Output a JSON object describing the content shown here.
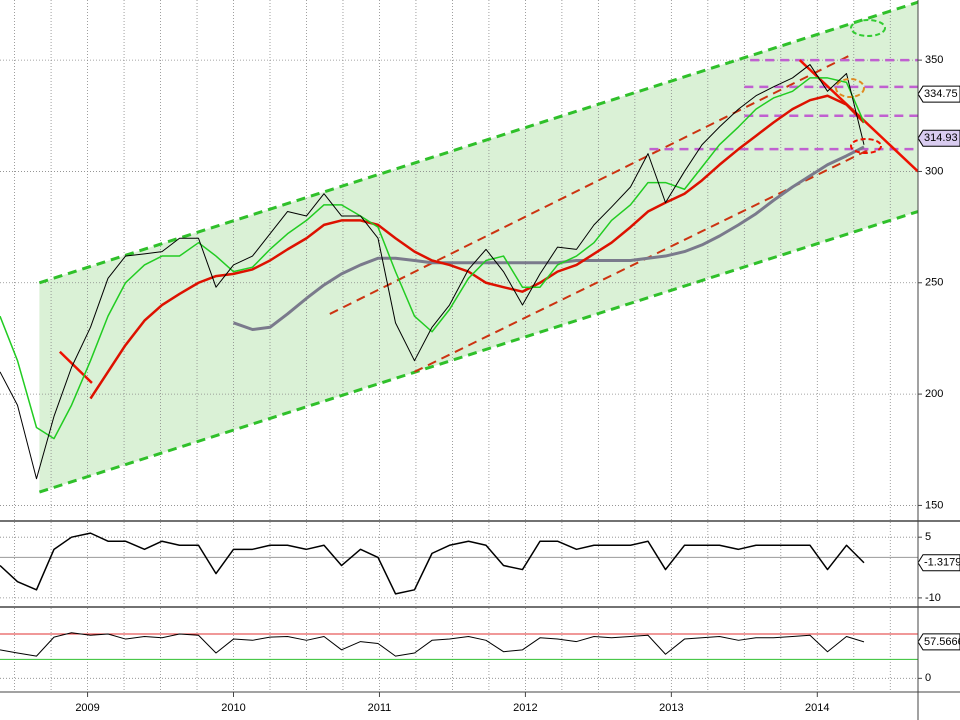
{
  "chart_data": [
    {
      "type": "line",
      "xlim": [
        2008.9,
        2015.19
      ],
      "xgrid": [
        2009,
        2009.25,
        2009.5,
        2009.75,
        2010,
        2010.25,
        2010.5,
        2010.75,
        2011,
        2011.25,
        2011.5,
        2011.75,
        2012,
        2012.25,
        2012.5,
        2012.75,
        2013,
        2013.25,
        2013.5,
        2013.75,
        2014,
        2014.25,
        2014.5,
        2014.75,
        2015
      ],
      "ylim": [
        143,
        377
      ],
      "yticks": [
        150,
        200,
        250,
        300,
        350
      ],
      "grid": true,
      "channel_fill": "#d3efcf",
      "x": [
        2008.9,
        2009.02,
        2009.15,
        2009.27,
        2009.39,
        2009.52,
        2009.64,
        2009.76,
        2009.89,
        2010.01,
        2010.13,
        2010.26,
        2010.38,
        2010.5,
        2010.63,
        2010.75,
        2010.87,
        2011.0,
        2011.12,
        2011.24,
        2011.37,
        2011.49,
        2011.61,
        2011.74,
        2011.86,
        2011.98,
        2012.11,
        2012.23,
        2012.35,
        2012.48,
        2012.6,
        2012.72,
        2012.85,
        2012.97,
        2013.09,
        2013.22,
        2013.34,
        2013.46,
        2013.59,
        2013.71,
        2013.83,
        2013.96,
        2014.08,
        2014.2,
        2014.33,
        2014.45,
        2014.57,
        2014.7,
        2014.82
      ],
      "trendlines": [
        {
          "color": "#2fc02a",
          "dash": true,
          "width": 3,
          "x": [
            2009.17,
            2015.19
          ],
          "values": [
            250,
            376
          ]
        },
        {
          "color": "#2fc02a",
          "dash": true,
          "width": 3,
          "x": [
            2009.17,
            2015.19
          ],
          "values": [
            156,
            282
          ]
        },
        {
          "color": "#cc3311",
          "dash": true,
          "width": 2,
          "x": [
            2011.16,
            2014.72
          ],
          "values": [
            236,
            352
          ]
        },
        {
          "color": "#cc3311",
          "dash": true,
          "width": 2,
          "x": [
            2011.74,
            2014.86
          ],
          "values": [
            210,
            310
          ]
        },
        {
          "color": "#c060d0",
          "dash": true,
          "width": 2.5,
          "x": [
            2014.04,
            2015.19
          ],
          "values": [
            350,
            350
          ]
        },
        {
          "color": "#c060d0",
          "dash": true,
          "width": 2.5,
          "x": [
            2014.0,
            2015.19
          ],
          "values": [
            338,
            338
          ]
        },
        {
          "color": "#c060d0",
          "dash": true,
          "width": 2.5,
          "x": [
            2014.0,
            2015.19
          ],
          "values": [
            325,
            325
          ]
        },
        {
          "color": "#c060d0",
          "dash": true,
          "width": 2.5,
          "x": [
            2013.35,
            2015.19
          ],
          "values": [
            310,
            310
          ]
        },
        {
          "color": "#ee1100",
          "dash": false,
          "width": 2.5,
          "x": [
            2014.38,
            2015.19
          ],
          "values": [
            350,
            300
          ]
        },
        {
          "color": "#ee1100",
          "dash": false,
          "width": 2.5,
          "x": [
            2009.31,
            2009.53
          ],
          "values": [
            219,
            205
          ]
        }
      ],
      "series": [
        {
          "color": "#7a7a8c",
          "width": 3,
          "values": [
            null,
            null,
            null,
            null,
            null,
            null,
            null,
            null,
            null,
            null,
            null,
            null,
            null,
            232,
            229,
            230,
            236,
            243,
            249,
            254,
            258,
            261,
            261,
            260,
            259,
            259,
            259,
            259,
            259,
            259,
            259,
            259,
            260,
            260,
            260,
            260,
            261,
            262,
            264,
            267,
            271,
            276,
            281,
            287,
            293,
            298,
            303,
            307,
            311
          ]
        },
        {
          "color": "#dd1100",
          "width": 2.5,
          "values": [
            null,
            null,
            null,
            null,
            null,
            198,
            210,
            222,
            233,
            240,
            245,
            250,
            253,
            254,
            256,
            260,
            265,
            270,
            276,
            278,
            278,
            276,
            270,
            264,
            260,
            258,
            255,
            250,
            248,
            246,
            250,
            255,
            258,
            263,
            268,
            275,
            282,
            286,
            290,
            296,
            303,
            310,
            316,
            322,
            328,
            332,
            334,
            330,
            322
          ]
        },
        {
          "color": "#22cc22",
          "width": 1.5,
          "values": [
            235,
            215,
            185,
            180,
            195,
            215,
            235,
            250,
            258,
            262,
            262,
            268,
            262,
            255,
            257,
            265,
            272,
            278,
            285,
            285,
            280,
            275,
            255,
            235,
            228,
            238,
            252,
            260,
            262,
            248,
            248,
            258,
            262,
            268,
            278,
            285,
            295,
            295,
            292,
            302,
            312,
            320,
            328,
            333,
            336,
            342,
            342,
            340,
            322
          ]
        },
        {
          "color": "#000000",
          "width": 1,
          "values": [
            210,
            195,
            162,
            190,
            212,
            230,
            252,
            262,
            263,
            264,
            270,
            270,
            248,
            258,
            262,
            272,
            282,
            280,
            290,
            280,
            280,
            270,
            232,
            215,
            230,
            240,
            256,
            265,
            255,
            240,
            254,
            266,
            265,
            276,
            284,
            293,
            308,
            286,
            300,
            312,
            320,
            328,
            334,
            338,
            342,
            348,
            336,
            344,
            312
          ]
        }
      ],
      "tags": [
        {
          "value": 334.75,
          "color": "#ffffff"
        },
        {
          "value": 314.93,
          "color": "#d9ccf0"
        }
      ]
    },
    {
      "type": "line",
      "xlim": [
        2008.9,
        2015.19
      ],
      "xgrid": [
        2009,
        2009.25,
        2009.5,
        2009.75,
        2010,
        2010.25,
        2010.5,
        2010.75,
        2011,
        2011.25,
        2011.5,
        2011.75,
        2012,
        2012.25,
        2012.5,
        2012.75,
        2013,
        2013.25,
        2013.5,
        2013.75,
        2014,
        2014.25,
        2014.5,
        2014.75,
        2015
      ],
      "ylim": [
        -12,
        8.75
      ],
      "yticks": [
        5,
        -10
      ],
      "grid": true,
      "levels": [
        {
          "value": 0,
          "color": "#999999"
        }
      ],
      "x": [
        2008.9,
        2009.02,
        2009.15,
        2009.27,
        2009.39,
        2009.52,
        2009.64,
        2009.76,
        2009.89,
        2010.01,
        2010.13,
        2010.26,
        2010.38,
        2010.5,
        2010.63,
        2010.75,
        2010.87,
        2011.0,
        2011.12,
        2011.24,
        2011.37,
        2011.49,
        2011.61,
        2011.74,
        2011.86,
        2011.98,
        2012.11,
        2012.23,
        2012.35,
        2012.48,
        2012.6,
        2012.72,
        2012.85,
        2012.97,
        2013.09,
        2013.22,
        2013.34,
        2013.46,
        2013.59,
        2013.71,
        2013.83,
        2013.96,
        2014.08,
        2014.2,
        2014.33,
        2014.45,
        2014.57,
        2014.7,
        2014.82
      ],
      "series": [
        {
          "color": "#000000",
          "width": 1.5,
          "values": [
            -2,
            -6,
            -8,
            2,
            5,
            6,
            4,
            4,
            2,
            4,
            3,
            3,
            -4,
            2,
            2,
            3,
            3,
            2,
            3,
            -2,
            2,
            0,
            -9,
            -8,
            1,
            3,
            4,
            3,
            -2,
            -3,
            4,
            4,
            2,
            3,
            3,
            3,
            4,
            -3,
            3,
            3,
            3,
            2,
            3,
            3,
            3,
            3,
            -3,
            3,
            -1.3179
          ]
        }
      ],
      "tags": [
        {
          "value": -1.3179,
          "color": "#ffffff"
        }
      ]
    },
    {
      "type": "line",
      "xlim": [
        2008.9,
        2015.19
      ],
      "xgrid": [
        2009,
        2009.25,
        2009.5,
        2009.75,
        2010,
        2010.25,
        2010.5,
        2010.75,
        2011,
        2011.25,
        2011.5,
        2011.75,
        2012,
        2012.25,
        2012.5,
        2012.75,
        2013,
        2013.25,
        2013.5,
        2013.75,
        2014,
        2014.25,
        2014.5,
        2014.75,
        2015
      ],
      "xticks": [
        {
          "value": 2009.5,
          "label": "2009"
        },
        {
          "value": 2010.5,
          "label": "2010"
        },
        {
          "value": 2011.5,
          "label": "2011"
        },
        {
          "value": 2012.5,
          "label": "2012"
        },
        {
          "value": 2013.5,
          "label": "2013"
        },
        {
          "value": 2014.5,
          "label": "2014"
        }
      ],
      "ylim": [
        -20,
        111
      ],
      "yticks": [
        0
      ],
      "grid": true,
      "levels": [
        {
          "value": 70,
          "color": "#e03030"
        },
        {
          "value": 30,
          "color": "#30c030"
        }
      ],
      "x": [
        2008.9,
        2009.02,
        2009.15,
        2009.27,
        2009.39,
        2009.52,
        2009.64,
        2009.76,
        2009.89,
        2010.01,
        2010.13,
        2010.26,
        2010.38,
        2010.5,
        2010.63,
        2010.75,
        2010.87,
        2011.0,
        2011.12,
        2011.24,
        2011.37,
        2011.49,
        2011.61,
        2011.74,
        2011.86,
        2011.98,
        2012.11,
        2012.23,
        2012.35,
        2012.48,
        2012.6,
        2012.72,
        2012.85,
        2012.97,
        2013.09,
        2013.22,
        2013.34,
        2013.46,
        2013.59,
        2013.71,
        2013.83,
        2013.96,
        2014.08,
        2014.2,
        2014.33,
        2014.45,
        2014.57,
        2014.7,
        2014.82
      ],
      "series": [
        {
          "color": "#000000",
          "width": 1,
          "values": [
            45,
            40,
            35,
            65,
            72,
            68,
            70,
            62,
            66,
            64,
            70,
            68,
            40,
            62,
            60,
            65,
            66,
            60,
            66,
            45,
            58,
            55,
            35,
            40,
            60,
            62,
            66,
            60,
            42,
            45,
            64,
            62,
            58,
            66,
            64,
            66,
            68,
            38,
            62,
            64,
            66,
            60,
            64,
            64,
            66,
            68,
            42,
            66,
            57.5666
          ]
        }
      ],
      "tags": [
        {
          "value": 57.5666,
          "color": "#ffffff"
        }
      ]
    }
  ]
}
